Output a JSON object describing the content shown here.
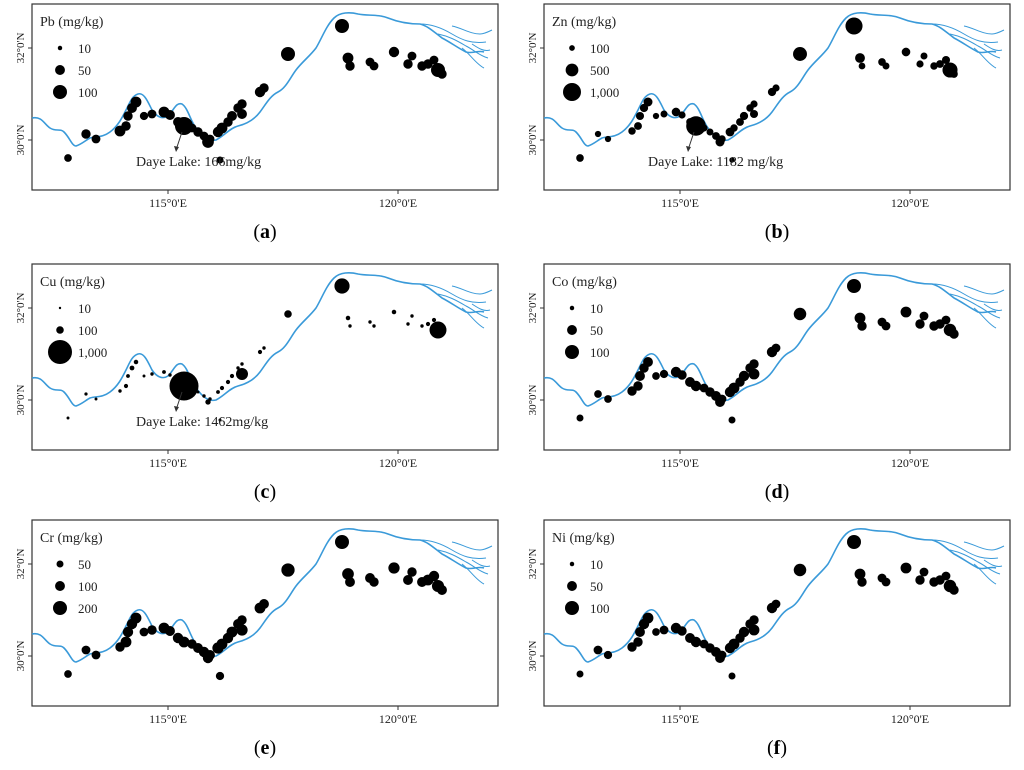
{
  "figure": {
    "panels": [
      {
        "id": "a",
        "caption": "a",
        "legend_title": "Pb (mg/kg)",
        "legend_items": [
          {
            "label": "10",
            "value": 10
          },
          {
            "label": "50",
            "value": 50
          },
          {
            "label": "100",
            "value": 100
          }
        ],
        "annotation": "Daye Lake: 166mg/kg",
        "lat_label": "32°0'N",
        "lat_label_2": "30°0'N",
        "lon_labels": [
          "115°0'E",
          "120°0'E"
        ],
        "daye_value": 166
      },
      {
        "id": "b",
        "caption": "b",
        "legend_title": "Zn (mg/kg)",
        "legend_items": [
          {
            "label": "100",
            "value": 100
          },
          {
            "label": "500",
            "value": 500
          },
          {
            "label": "1,000",
            "value": 1000
          }
        ],
        "annotation": "Daye Lake: 1182 mg/kg",
        "lat_label": "32°0'N",
        "lat_label_2": "30°0'N",
        "lon_labels": [
          "115°0'E",
          "120°0'E"
        ],
        "daye_value": 1182
      },
      {
        "id": "c",
        "caption": "c",
        "legend_title": "Cu (mg/kg)",
        "legend_items": [
          {
            "label": "10",
            "value": 10
          },
          {
            "label": "100",
            "value": 100
          },
          {
            "label": "1,000",
            "value": 1000
          }
        ],
        "annotation": "Daye Lake: 1462mg/kg",
        "lat_label": "32°0'N",
        "lat_label_2": "30°0'N",
        "lon_labels": [
          "115°0'E",
          "120°0'E"
        ],
        "daye_value": 1462
      },
      {
        "id": "d",
        "caption": "d",
        "legend_title": "Co (mg/kg)",
        "legend_items": [
          {
            "label": "10",
            "value": 10
          },
          {
            "label": "50",
            "value": 50
          },
          {
            "label": "100",
            "value": 100
          }
        ],
        "annotation": "",
        "lat_label": "32°0'N",
        "lat_label_2": "30°0'N",
        "lon_labels": [
          "115°0'E",
          "120°0'E"
        ]
      },
      {
        "id": "e",
        "caption": "e",
        "legend_title": "Cr (mg/kg)",
        "legend_items": [
          {
            "label": "50",
            "value": 50
          },
          {
            "label": "100",
            "value": 100
          },
          {
            "label": "200",
            "value": 200
          }
        ],
        "annotation": "",
        "lat_label": "32°0'N",
        "lat_label_2": "30°0'N",
        "lon_labels": [
          "115°0'E",
          "120°0'E"
        ]
      },
      {
        "id": "f",
        "caption": "f",
        "legend_title": "Ni (mg/kg)",
        "legend_items": [
          {
            "label": "10",
            "value": 10
          },
          {
            "label": "50",
            "value": 50
          },
          {
            "label": "100",
            "value": 100
          }
        ],
        "annotation": "",
        "lat_label": "32°0'N",
        "lat_label_2": "30°0'N",
        "lon_labels": [
          "115°0'E",
          "120°0'E"
        ]
      }
    ]
  },
  "colors": {
    "river": "#3a9ad9",
    "points": "#000000",
    "frame": "#333333"
  }
}
